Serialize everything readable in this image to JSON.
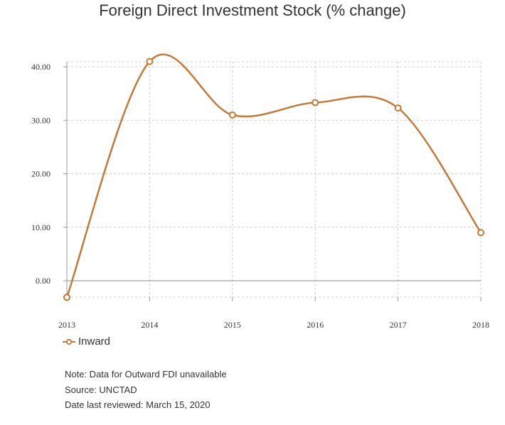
{
  "chart_data": {
    "type": "line",
    "title": "Foreign Direct Investment Stock (% change)",
    "x": [
      "2013",
      "2014",
      "2015",
      "2016",
      "2017",
      "2018"
    ],
    "series": [
      {
        "name": "Inward",
        "values": [
          -3.1,
          41.0,
          31.0,
          33.3,
          32.3,
          9.0
        ],
        "color": "#c17a3a"
      }
    ],
    "yticks": [
      "0.00",
      "10.00",
      "20.00",
      "30.00",
      "40.00"
    ],
    "ylim": [
      -4,
      41
    ],
    "grid": true,
    "legend_position": "bottom-left"
  },
  "notes": [
    "Note: Data for Outward FDI unavailable",
    "Source: UNCTAD",
    "Date last reviewed: March 15, 2020"
  ]
}
